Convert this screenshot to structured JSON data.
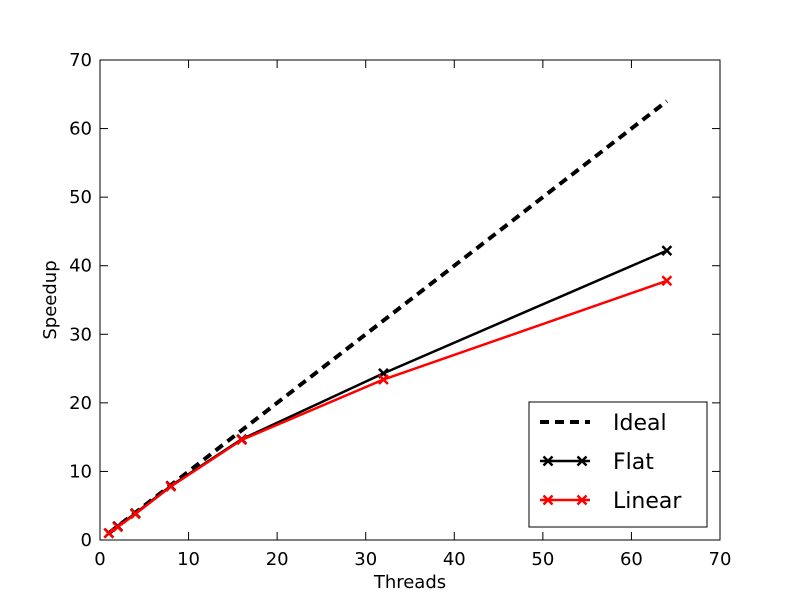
{
  "chart_data": {
    "type": "line",
    "title": "",
    "xlabel": "Threads",
    "ylabel": "Speedup",
    "xlim": [
      0,
      70
    ],
    "ylim": [
      0,
      70
    ],
    "xticks": [
      0,
      10,
      20,
      30,
      40,
      50,
      60,
      70
    ],
    "yticks": [
      0,
      10,
      20,
      30,
      40,
      50,
      60,
      70
    ],
    "grid": false,
    "legend_position": "bottom-right",
    "series": [
      {
        "name": "Ideal",
        "color": "#000000",
        "style": "dashed",
        "marker": "none",
        "x": [
          1,
          2,
          4,
          8,
          16,
          32,
          64
        ],
        "y": [
          1,
          2,
          4,
          8,
          16,
          32,
          64
        ]
      },
      {
        "name": "Flat",
        "color": "#000000",
        "style": "solid",
        "marker": "x",
        "x": [
          1,
          2,
          4,
          8,
          16,
          32,
          64
        ],
        "y": [
          1,
          2,
          3.9,
          7.9,
          14.7,
          24.3,
          42.2
        ]
      },
      {
        "name": "Linear",
        "color": "#ff0000",
        "style": "solid",
        "marker": "x",
        "x": [
          1,
          2,
          4,
          8,
          16,
          32,
          64
        ],
        "y": [
          1,
          1.9,
          3.8,
          7.8,
          14.6,
          23.4,
          37.8
        ]
      }
    ]
  }
}
